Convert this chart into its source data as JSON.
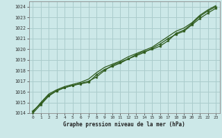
{
  "xlabel": "Graphe pression niveau de la mer (hPa)",
  "bg_color": "#cce8e8",
  "grid_color": "#aacccc",
  "line_color": "#2d5a1b",
  "xlim": [
    -0.5,
    23.5
  ],
  "ylim": [
    1014,
    1024.5
  ],
  "yticks": [
    1014,
    1015,
    1016,
    1017,
    1018,
    1019,
    1020,
    1021,
    1022,
    1023,
    1024
  ],
  "xticks": [
    0,
    1,
    2,
    3,
    4,
    5,
    6,
    7,
    8,
    9,
    10,
    11,
    12,
    13,
    14,
    15,
    16,
    17,
    18,
    19,
    20,
    21,
    22,
    23
  ],
  "series1_x": [
    0,
    1,
    2,
    3,
    4,
    5,
    6,
    7,
    8,
    9,
    10,
    11,
    12,
    13,
    14,
    15,
    16,
    17,
    18,
    19,
    20,
    21,
    22,
    23
  ],
  "series1_y": [
    1014.2,
    1014.9,
    1015.7,
    1016.1,
    1016.4,
    1016.6,
    1016.8,
    1017.0,
    1017.4,
    1018.0,
    1018.5,
    1018.8,
    1019.1,
    1019.5,
    1019.8,
    1020.0,
    1020.3,
    1020.8,
    1021.5,
    1021.8,
    1022.4,
    1023.1,
    1023.6,
    1024.0
  ],
  "series2_x": [
    0,
    1,
    2,
    3,
    4,
    5,
    6,
    7,
    8,
    9,
    10,
    11,
    12,
    13,
    14,
    15,
    16,
    17,
    18,
    19,
    20,
    21,
    22,
    23
  ],
  "series2_y": [
    1014.0,
    1014.8,
    1015.6,
    1016.1,
    1016.4,
    1016.6,
    1016.75,
    1016.9,
    1017.6,
    1018.1,
    1018.4,
    1018.7,
    1019.1,
    1019.4,
    1019.7,
    1020.1,
    1020.5,
    1021.0,
    1021.4,
    1021.7,
    1022.3,
    1022.9,
    1023.4,
    1023.85
  ],
  "series3_x": [
    0,
    1,
    2,
    3,
    4,
    5,
    6,
    7,
    8,
    9,
    10,
    11,
    12,
    13,
    14,
    15,
    16,
    17,
    18,
    19,
    20,
    21,
    22,
    23
  ],
  "series3_y": [
    1014.1,
    1015.0,
    1015.8,
    1016.2,
    1016.5,
    1016.7,
    1016.9,
    1017.2,
    1017.8,
    1018.3,
    1018.6,
    1018.9,
    1019.3,
    1019.6,
    1019.9,
    1020.2,
    1020.7,
    1021.2,
    1021.7,
    1022.0,
    1022.5,
    1023.2,
    1023.7,
    1024.1
  ]
}
